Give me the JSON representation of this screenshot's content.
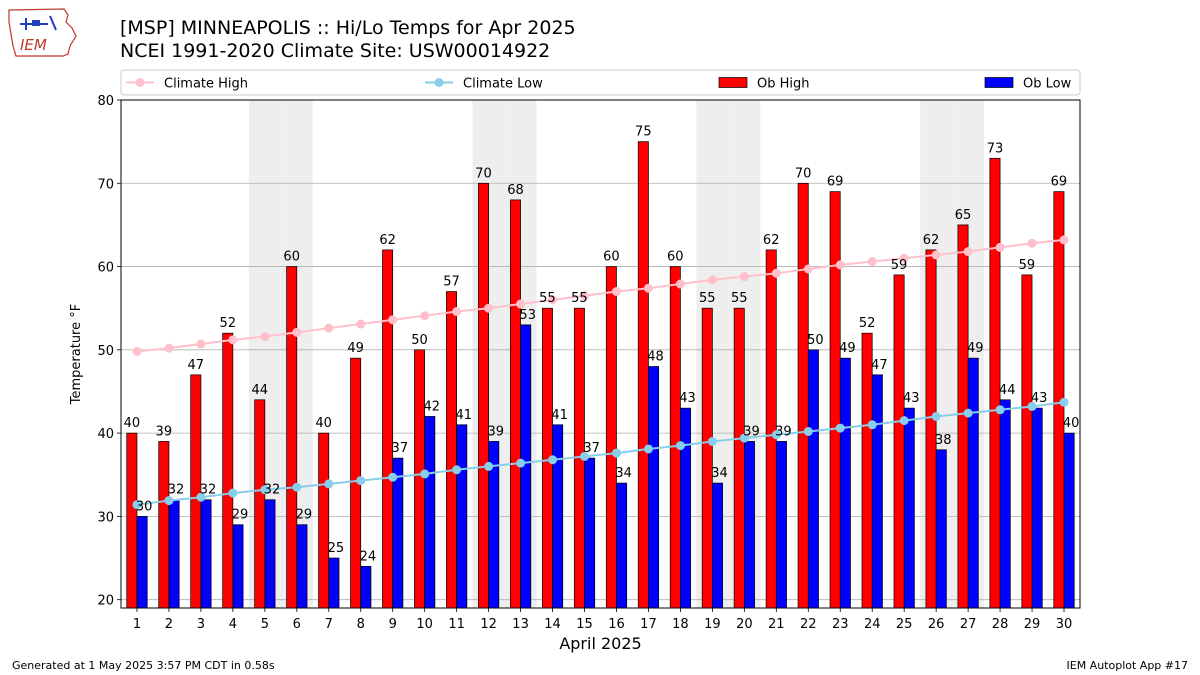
{
  "header": {
    "title_line1": "[MSP] MINNEAPOLIS :: Hi/Lo Temps for Apr 2025",
    "title_line2": "NCEI 1991-2020 Climate Site: USW00014922",
    "logo_text": "IEM"
  },
  "footer": {
    "left": "Generated at 1 May 2025 3:57 PM CDT in 0.58s",
    "right": "IEM Autoplot App #17"
  },
  "colors": {
    "ob_high": "#ff0000",
    "ob_low": "#0000ff",
    "climate_high": "#ffc0cb",
    "climate_low": "#87ceeb",
    "weekend_band": "#eeeeee",
    "grid": "#b0b0b0"
  },
  "chart_data": {
    "type": "bar",
    "xlabel": "April 2025",
    "ylabel": "Temperature °F",
    "ylim": [
      19,
      80
    ],
    "yticks": [
      20,
      30,
      40,
      50,
      60,
      70,
      80
    ],
    "grid": true,
    "legend_position": "top",
    "categories": [
      "1",
      "2",
      "3",
      "4",
      "5",
      "6",
      "7",
      "8",
      "9",
      "10",
      "11",
      "12",
      "13",
      "14",
      "15",
      "16",
      "17",
      "18",
      "19",
      "20",
      "21",
      "22",
      "23",
      "24",
      "25",
      "26",
      "27",
      "28",
      "29",
      "30"
    ],
    "shaded_days": [
      5,
      6,
      12,
      13,
      19,
      20,
      26,
      27
    ],
    "series": [
      {
        "name": "Ob High",
        "kind": "bar",
        "values": [
          40,
          39,
          47,
          52,
          44,
          60,
          40,
          49,
          62,
          50,
          57,
          70,
          68,
          55,
          55,
          60,
          75,
          60,
          55,
          55,
          62,
          70,
          69,
          52,
          59,
          62,
          65,
          73,
          59,
          69
        ]
      },
      {
        "name": "Ob Low",
        "kind": "bar",
        "values": [
          30,
          32,
          32,
          29,
          32,
          29,
          25,
          24,
          37,
          42,
          41,
          39,
          53,
          41,
          37,
          34,
          48,
          43,
          34,
          39,
          39,
          50,
          49,
          47,
          43,
          38,
          49,
          44,
          43,
          40
        ]
      },
      {
        "name": "Climate High",
        "kind": "line",
        "values": [
          49.8,
          50.2,
          50.7,
          51.2,
          51.6,
          52.1,
          52.6,
          53.1,
          53.6,
          54.1,
          54.6,
          55.0,
          55.5,
          56.0,
          56.5,
          57.0,
          57.4,
          57.9,
          58.4,
          58.8,
          59.2,
          59.7,
          60.2,
          60.6,
          61.0,
          61.4,
          61.8,
          62.3,
          62.8,
          63.2
        ]
      },
      {
        "name": "Climate Low",
        "kind": "line",
        "values": [
          31.4,
          31.9,
          32.3,
          32.8,
          33.2,
          33.5,
          33.9,
          34.3,
          34.7,
          35.1,
          35.6,
          36.0,
          36.4,
          36.8,
          37.2,
          37.6,
          38.1,
          38.5,
          39.0,
          39.4,
          39.8,
          40.2,
          40.6,
          41.0,
          41.5,
          42.0,
          42.4,
          42.8,
          43.2,
          43.7
        ]
      }
    ]
  }
}
